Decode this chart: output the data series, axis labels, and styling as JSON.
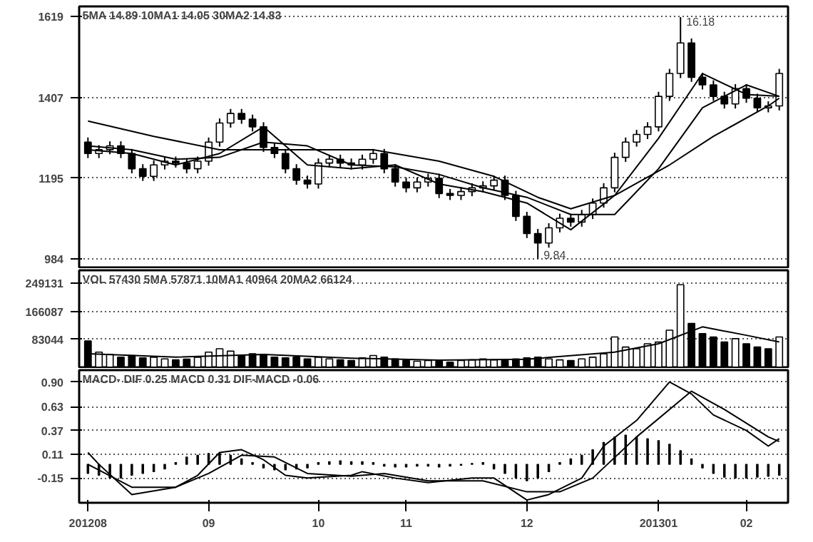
{
  "chart_data": [
    {
      "type": "candlestick",
      "categories": [
        null,
        null,
        null,
        null,
        null,
        null,
        null,
        null,
        null,
        null,
        null,
        null,
        null,
        null,
        null,
        null,
        null,
        null,
        null,
        null,
        null,
        null,
        null,
        null,
        null,
        null,
        null,
        null,
        null,
        null,
        null,
        null,
        null,
        null,
        null,
        null,
        null,
        null,
        null,
        null,
        null,
        null,
        null,
        null,
        null,
        null,
        null,
        null,
        null,
        null,
        null,
        null,
        null,
        null,
        null,
        null,
        null,
        null,
        null,
        null,
        null,
        null,
        null,
        null
      ],
      "ohlc": [
        [
          1290,
          1302,
          1248,
          1260
        ],
        [
          1260,
          1282,
          1248,
          1270
        ],
        [
          1270,
          1292,
          1258,
          1280
        ],
        [
          1280,
          1292,
          1248,
          1260
        ],
        [
          1260,
          1272,
          1208,
          1220
        ],
        [
          1220,
          1232,
          1188,
          1200
        ],
        [
          1200,
          1242,
          1188,
          1230
        ],
        [
          1230,
          1252,
          1218,
          1240
        ],
        [
          1240,
          1252,
          1223,
          1235
        ],
        [
          1235,
          1247,
          1208,
          1220
        ],
        [
          1220,
          1252,
          1208,
          1240
        ],
        [
          1240,
          1302,
          1228,
          1290
        ],
        [
          1290,
          1352,
          1278,
          1340
        ],
        [
          1340,
          1377,
          1328,
          1365
        ],
        [
          1365,
          1377,
          1338,
          1350
        ],
        [
          1350,
          1362,
          1318,
          1330
        ],
        [
          1330,
          1342,
          1264,
          1276
        ],
        [
          1276,
          1288,
          1248,
          1260
        ],
        [
          1260,
          1272,
          1208,
          1220
        ],
        [
          1220,
          1232,
          1178,
          1190
        ],
        [
          1190,
          1202,
          1168,
          1180
        ],
        [
          1180,
          1247,
          1168,
          1235
        ],
        [
          1235,
          1257,
          1223,
          1245
        ],
        [
          1245,
          1257,
          1223,
          1235
        ],
        [
          1235,
          1247,
          1218,
          1230
        ],
        [
          1230,
          1257,
          1218,
          1245
        ],
        [
          1245,
          1272,
          1233,
          1260
        ],
        [
          1260,
          1272,
          1208,
          1220
        ],
        [
          1220,
          1232,
          1173,
          1185
        ],
        [
          1185,
          1197,
          1158,
          1170
        ],
        [
          1170,
          1197,
          1158,
          1185
        ],
        [
          1185,
          1207,
          1173,
          1195
        ],
        [
          1195,
          1207,
          1143,
          1155
        ],
        [
          1155,
          1167,
          1138,
          1150
        ],
        [
          1150,
          1172,
          1138,
          1160
        ],
        [
          1160,
          1182,
          1148,
          1170
        ],
        [
          1170,
          1187,
          1158,
          1175
        ],
        [
          1175,
          1202,
          1163,
          1190
        ],
        [
          1190,
          1202,
          1138,
          1150
        ],
        [
          1150,
          1162,
          1083,
          1095
        ],
        [
          1095,
          1107,
          1038,
          1050
        ],
        [
          1050,
          1062,
          984,
          1025
        ],
        [
          1025,
          1077,
          1013,
          1065
        ],
        [
          1065,
          1102,
          1053,
          1090
        ],
        [
          1090,
          1102,
          1068,
          1080
        ],
        [
          1080,
          1112,
          1068,
          1100
        ],
        [
          1100,
          1142,
          1088,
          1130
        ],
        [
          1130,
          1182,
          1118,
          1170
        ],
        [
          1170,
          1262,
          1158,
          1250
        ],
        [
          1250,
          1302,
          1238,
          1290
        ],
        [
          1290,
          1322,
          1278,
          1310
        ],
        [
          1310,
          1342,
          1298,
          1330
        ],
        [
          1330,
          1422,
          1318,
          1410
        ],
        [
          1410,
          1482,
          1398,
          1470
        ],
        [
          1470,
          1618,
          1458,
          1550
        ],
        [
          1550,
          1562,
          1448,
          1460
        ],
        [
          1460,
          1472,
          1428,
          1440
        ],
        [
          1440,
          1452,
          1398,
          1410
        ],
        [
          1410,
          1422,
          1378,
          1390
        ],
        [
          1390,
          1442,
          1378,
          1430
        ],
        [
          1430,
          1442,
          1393,
          1405
        ],
        [
          1405,
          1417,
          1368,
          1380
        ],
        [
          1380,
          1397,
          1368,
          1385
        ],
        [
          1385,
          1482,
          1373,
          1470
        ]
      ],
      "series": [
        {
          "type": "line",
          "color": "#000000",
          "values": [
            1270,
            null,
            null,
            null,
            1260,
            null,
            null,
            null,
            1230,
            null,
            null,
            null,
            1260,
            null,
            null,
            null,
            1330,
            null,
            null,
            null,
            1230,
            null,
            null,
            null,
            1220,
            null,
            null,
            null,
            1230,
            null,
            null,
            null,
            1180,
            null,
            null,
            null,
            1160,
            null,
            null,
            null,
            1130,
            null,
            null,
            null,
            1060,
            null,
            null,
            null,
            1150,
            null,
            null,
            null,
            1300,
            null,
            null,
            null,
            1470,
            null,
            null,
            null,
            1415,
            null,
            null,
            1410
          ]
        },
        {
          "type": "line",
          "color": "#000000",
          "values": [
            1280,
            null,
            null,
            null,
            1270,
            null,
            null,
            null,
            1245,
            null,
            null,
            null,
            1250,
            null,
            null,
            null,
            1290,
            null,
            null,
            null,
            1280,
            null,
            null,
            null,
            1230,
            null,
            null,
            null,
            1225,
            null,
            null,
            null,
            1205,
            null,
            null,
            null,
            1170,
            null,
            null,
            null,
            1145,
            null,
            null,
            null,
            1100,
            null,
            null,
            null,
            1100,
            null,
            null,
            null,
            1220,
            null,
            null,
            null,
            1380,
            null,
            null,
            null,
            1440,
            null,
            null,
            1410
          ]
        },
        {
          "type": "line",
          "color": "#000000",
          "values": [
            1345,
            null,
            null,
            null,
            null,
            null,
            1305,
            null,
            null,
            null,
            null,
            null,
            1270,
            null,
            null,
            null,
            null,
            null,
            null,
            null,
            1270,
            null,
            null,
            null,
            null,
            null,
            1270,
            null,
            null,
            null,
            null,
            null,
            1240,
            null,
            null,
            null,
            null,
            1200,
            null,
            null,
            null,
            1145,
            null,
            null,
            1115,
            null,
            null,
            null,
            1150,
            null,
            null,
            null,
            null,
            1230,
            null,
            null,
            null,
            1305,
            null,
            null,
            null,
            null,
            1385,
            1405
          ]
        }
      ],
      "ylim": [
        961,
        1646
      ],
      "yticks": [
        1619,
        1407,
        1195,
        984
      ],
      "grid": "y",
      "tick_labels": "y",
      "annotations": [
        "5MA 14.89  10MA1 14.05  30MA2 14.83",
        "16.18",
        "9.84"
      ]
    },
    {
      "type": "bar",
      "categories": [
        null,
        null,
        null,
        null,
        null,
        null,
        null,
        null,
        null,
        null,
        null,
        null,
        null,
        null,
        null,
        null,
        null,
        null,
        null,
        null,
        null,
        null,
        null,
        null,
        null,
        null,
        null,
        null,
        null,
        null,
        null,
        null,
        null,
        null,
        null,
        null,
        null,
        null,
        null,
        null,
        null,
        null,
        null,
        null,
        null,
        null,
        null,
        null,
        null,
        null,
        null,
        null,
        null,
        null,
        null,
        null,
        null,
        null,
        null,
        null,
        null,
        null,
        null,
        null
      ],
      "values": [
        78000,
        45000,
        38000,
        30000,
        35000,
        28000,
        30000,
        25000,
        22000,
        24000,
        30000,
        45000,
        55000,
        48000,
        35000,
        40000,
        38000,
        30000,
        28000,
        30000,
        25000,
        30000,
        25000,
        22000,
        20000,
        28000,
        35000,
        30000,
        25000,
        20000,
        18000,
        20000,
        18000,
        15000,
        20000,
        22000,
        25000,
        22000,
        20000,
        25000,
        28000,
        30000,
        25000,
        22000,
        20000,
        25000,
        30000,
        40000,
        90000,
        60000,
        55000,
        70000,
        75000,
        110000,
        245000,
        130000,
        100000,
        90000,
        75000,
        85000,
        70000,
        60000,
        55000,
        90000
      ],
      "colors": [
        "#000000",
        "#ffffff",
        "#ffffff",
        "#000000",
        "#000000",
        "#000000",
        "#ffffff",
        "#ffffff",
        "#000000",
        "#000000",
        "#ffffff",
        "#ffffff",
        "#ffffff",
        "#ffffff",
        "#000000",
        "#000000",
        "#000000",
        "#000000",
        "#000000",
        "#000000",
        "#000000",
        "#ffffff",
        "#ffffff",
        "#000000",
        "#000000",
        "#ffffff",
        "#ffffff",
        "#000000",
        "#000000",
        "#000000",
        "#ffffff",
        "#ffffff",
        "#000000",
        "#000000",
        "#ffffff",
        "#ffffff",
        "#ffffff",
        "#ffffff",
        "#000000",
        "#000000",
        "#000000",
        "#000000",
        "#ffffff",
        "#ffffff",
        "#000000",
        "#ffffff",
        "#ffffff",
        "#ffffff",
        "#ffffff",
        "#ffffff",
        "#ffffff",
        "#ffffff",
        "#ffffff",
        "#ffffff",
        "#ffffff",
        "#000000",
        "#000000",
        "#000000",
        "#000000",
        "#ffffff",
        "#000000",
        "#000000",
        "#000000",
        "#ffffff"
      ],
      "series": [
        {
          "type": "line",
          "color": "#000000",
          "values": [
            40000,
            null,
            null,
            null,
            null,
            null,
            null,
            null,
            30000,
            null,
            null,
            null,
            null,
            null,
            null,
            null,
            38000,
            null,
            null,
            null,
            null,
            null,
            null,
            null,
            27000,
            null,
            null,
            null,
            null,
            null,
            null,
            null,
            21000,
            null,
            null,
            null,
            null,
            null,
            null,
            null,
            24000,
            null,
            null,
            null,
            null,
            null,
            null,
            null,
            45000,
            null,
            null,
            null,
            70000,
            null,
            null,
            null,
            120000,
            null,
            null,
            null,
            95000,
            null,
            null,
            75000
          ]
        }
      ],
      "ylim": [
        0,
        288000
      ],
      "yticks": [
        83044,
        166087,
        249131
      ],
      "grid": "y",
      "tick_labels": "y",
      "annotations": [
        "VOL 57430  5MA 57871  10MA1 40964  20MA2 66124"
      ]
    },
    {
      "type": "line",
      "categories": [
        "201208",
        null,
        null,
        null,
        null,
        null,
        null,
        null,
        null,
        null,
        null,
        "09",
        null,
        null,
        null,
        null,
        null,
        null,
        null,
        null,
        null,
        "10",
        null,
        null,
        null,
        null,
        null,
        null,
        null,
        "11",
        null,
        null,
        null,
        null,
        null,
        null,
        null,
        null,
        null,
        null,
        "12",
        null,
        null,
        null,
        null,
        null,
        null,
        null,
        null,
        null,
        null,
        null,
        "201301",
        null,
        null,
        null,
        null,
        null,
        null,
        null,
        "02",
        null,
        null,
        null
      ],
      "series": [
        {
          "type": "line",
          "color": "#000000",
          "values": [
            0.13,
            0,
            null,
            null,
            -0.33,
            null,
            null,
            null,
            -0.25,
            null,
            -0.12,
            null,
            0.13,
            null,
            0.16,
            null,
            0.05,
            null,
            -0.12,
            null,
            -0.15,
            null,
            null,
            null,
            -0.12,
            -0.08,
            null,
            null,
            -0.15,
            null,
            null,
            -0.2,
            null,
            null,
            null,
            -0.15,
            null,
            -0.15,
            null,
            null,
            -0.39,
            null,
            -0.33,
            null,
            null,
            -0.15,
            null,
            0.2,
            null,
            null,
            0.48,
            null,
            null,
            0.9,
            null,
            0.77,
            null,
            0.54,
            null,
            null,
            0.37,
            null,
            0.2,
            0.28
          ]
        },
        {
          "type": "line",
          "color": "#000000",
          "values": [
            0,
            null,
            null,
            null,
            -0.25,
            null,
            null,
            null,
            -0.25,
            null,
            null,
            -0.1,
            null,
            null,
            0.1,
            null,
            null,
            0.08,
            null,
            null,
            -0.1,
            null,
            null,
            null,
            -0.13,
            null,
            null,
            -0.1,
            null,
            null,
            null,
            -0.18,
            null,
            null,
            null,
            null,
            -0.18,
            null,
            null,
            null,
            -0.3,
            null,
            null,
            -0.3,
            null,
            null,
            -0.15,
            null,
            null,
            null,
            0.3,
            null,
            null,
            null,
            null,
            0.8,
            null,
            null,
            0.6,
            null,
            null,
            null,
            0.3,
            0.25
          ]
        },
        {
          "type": "bar",
          "color": "#000000",
          "values": [
            -0.1,
            -0.12,
            -0.15,
            -0.15,
            -0.12,
            -0.1,
            -0.08,
            -0.05,
            0.02,
            0.08,
            0.1,
            0.12,
            0.12,
            0.1,
            0.06,
            0.02,
            -0.04,
            -0.06,
            -0.06,
            -0.05,
            -0.04,
            0.02,
            0.03,
            0.04,
            0.03,
            0.03,
            0.02,
            -0.02,
            -0.03,
            -0.03,
            -0.02,
            -0.02,
            -0.03,
            -0.02,
            -0.01,
            0.01,
            0.02,
            -0.05,
            -0.1,
            -0.15,
            -0.18,
            -0.15,
            -0.08,
            0.02,
            0.06,
            0.1,
            0.16,
            0.24,
            0.3,
            0.32,
            0.3,
            0.28,
            0.26,
            0.22,
            0.15,
            0.06,
            -0.04,
            -0.1,
            -0.14,
            -0.15,
            -0.15,
            -0.14,
            -0.13,
            -0.12
          ]
        }
      ],
      "ylim": [
        -0.42,
        1.03
      ],
      "yticks": [
        {
          "value": 0.9,
          "label": "0.90"
        },
        0.63,
        0.37,
        0.11,
        -0.15
      ],
      "grid": "y",
      "annotations": [
        "MACD- DIF 0.25  MACD 0.31  DIF-MACD -0.06"
      ]
    }
  ]
}
